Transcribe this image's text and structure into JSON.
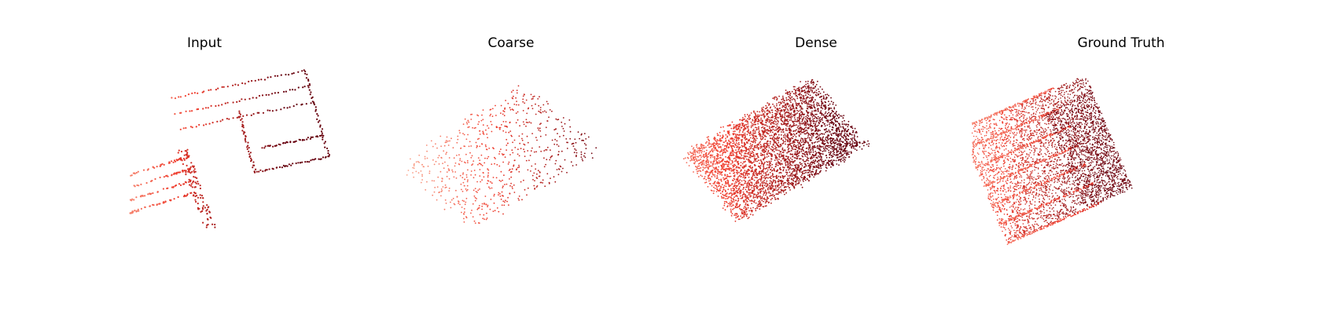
{
  "panels": [
    {
      "title": "Input",
      "kind": "input"
    },
    {
      "title": "Coarse",
      "kind": "coarse"
    },
    {
      "title": "Dense",
      "kind": "dense"
    },
    {
      "title": "Ground Truth",
      "kind": "gt"
    }
  ],
  "colormap": {
    "light": "#fcbba1",
    "mid": "#ef3b2c",
    "dark": "#67000d"
  }
}
